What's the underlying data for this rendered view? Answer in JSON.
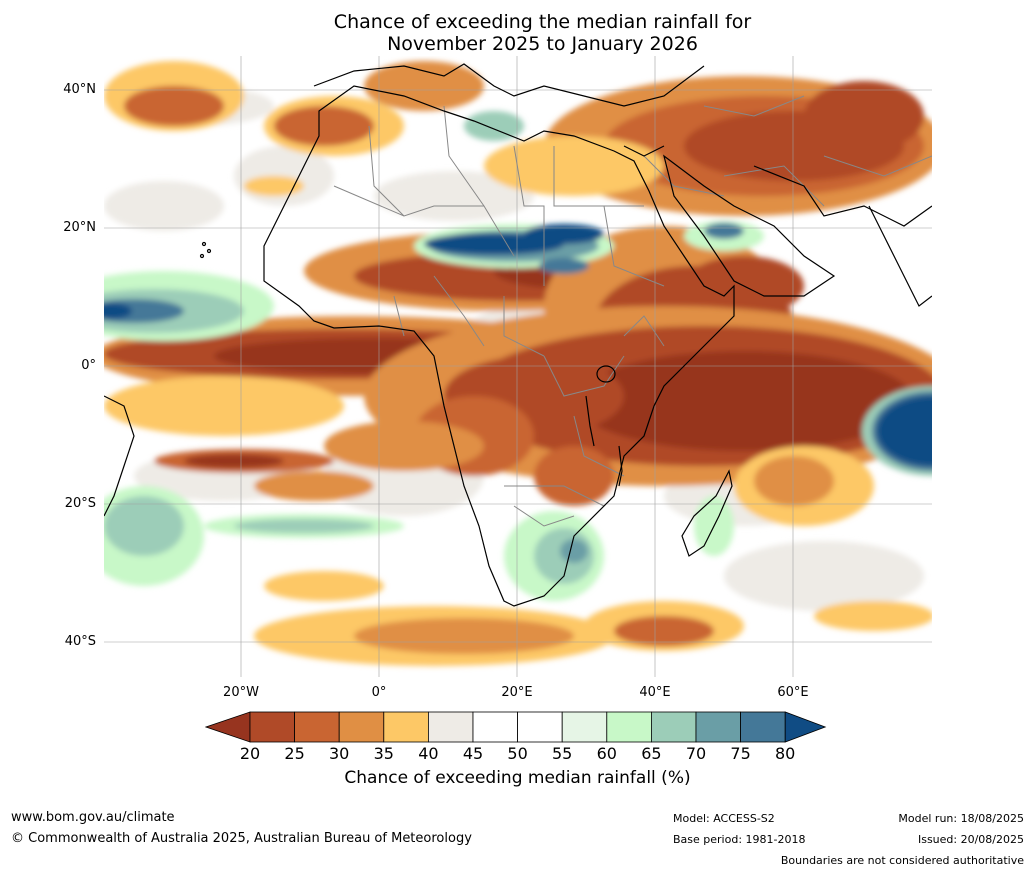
{
  "title": {
    "line1": "Chance of exceeding the median rainfall for",
    "line2": "November 2025 to January 2026"
  },
  "axes": {
    "lat_labels": [
      "40°N",
      "20°N",
      "0°",
      "20°S",
      "40°S"
    ],
    "lon_labels": [
      "20°W",
      "0°",
      "20°E",
      "40°E",
      "60°E"
    ]
  },
  "colorbar": {
    "ticks": [
      "20",
      "25",
      "30",
      "35",
      "40",
      "45",
      "50",
      "55",
      "60",
      "65",
      "70",
      "75",
      "80"
    ],
    "colors": [
      "#97341f",
      "#b04a28",
      "#c96532",
      "#e08f44",
      "#fdc866",
      "#eeebe6",
      "#ffffff",
      "#ffffff",
      "#e6f5e6",
      "#c8f8c8",
      "#9ccdb8",
      "#6a9ea6",
      "#447898",
      "#104c84"
    ],
    "label": "Chance of exceeding median rainfall (%)"
  },
  "footer": {
    "url": "www.bom.gov.au/climate",
    "copyright": "© Commonwealth of Australia 2025, Australian Bureau of Meteorology",
    "model": "Model: ACCESS-S2",
    "base_period": "Base period: 1981-2018",
    "model_run": "Model run: 18/08/2025",
    "issued": "Issued: 20/08/2025",
    "disclaimer": "Boundaries are not considered authoritative"
  }
}
